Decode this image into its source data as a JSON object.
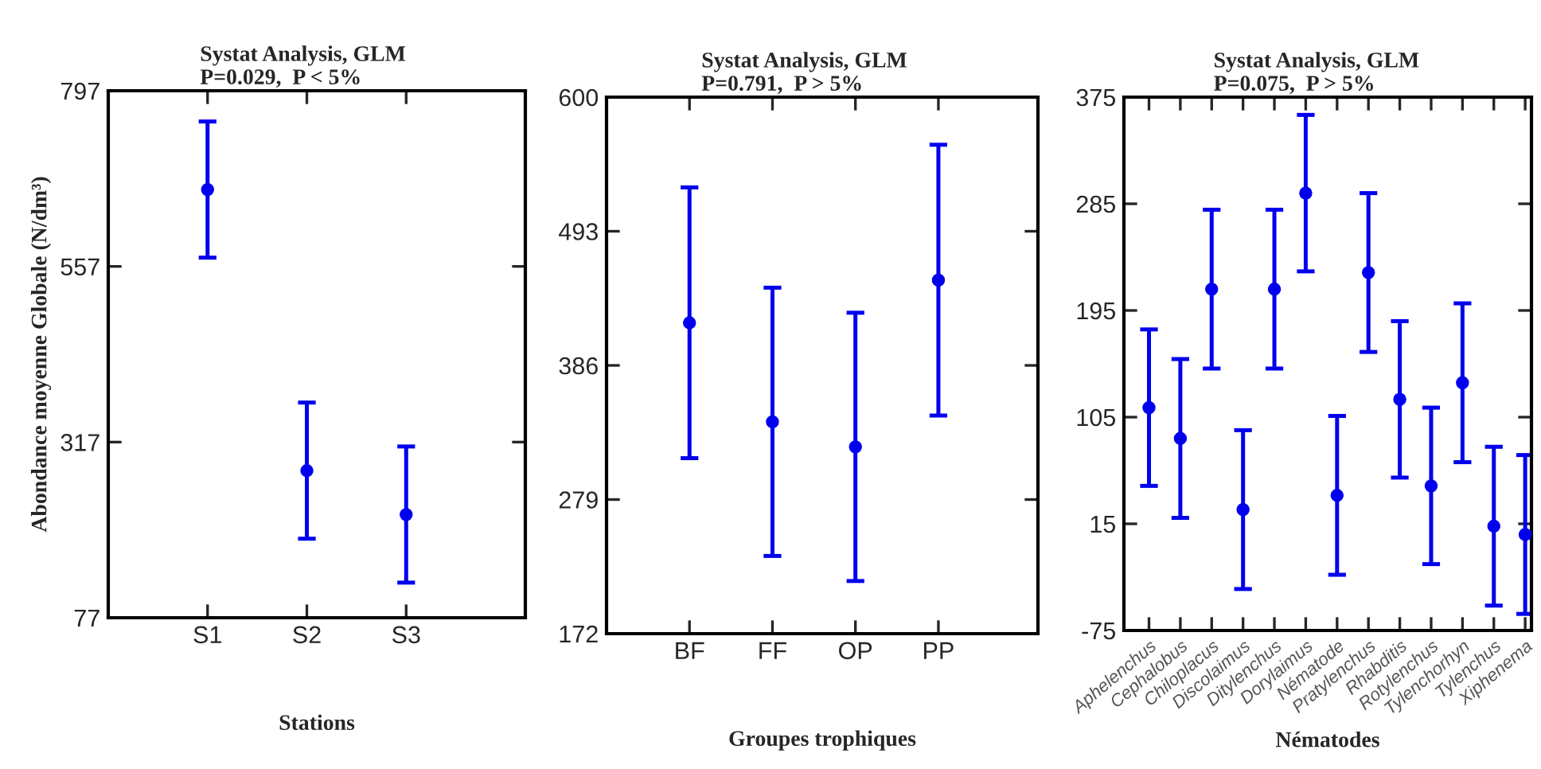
{
  "chart_data": [
    {
      "type": "scatter",
      "title": "Systat Analysis, GLM\nP=0.029,  P < 5%",
      "xlabel": "Stations",
      "ylabel": "Abondance moyenne Globale (N/dm³)",
      "categories": [
        "S1",
        "S2",
        "S3"
      ],
      "marker": "circle",
      "series": [
        {
          "color": "#0000ee",
          "values": [
            662,
            278,
            218
          ],
          "errors": [
            93,
            93,
            93
          ]
        }
      ],
      "ylim": [
        77,
        797
      ],
      "yticks": [
        77,
        317,
        557,
        797
      ],
      "grid": false,
      "legend": false
    },
    {
      "type": "scatter",
      "title": "Systat Analysis, GLM\nP=0.791,  P > 5%",
      "xlabel": "Groupes trophiques",
      "categories": [
        "BF",
        "FF",
        "OP",
        "PP"
      ],
      "marker": "circle",
      "series": [
        {
          "color": "#0000ee",
          "values": [
            420,
            341,
            321,
            454
          ],
          "errors": [
            108,
            107,
            107,
            108
          ]
        }
      ],
      "ylim": [
        172,
        600
      ],
      "yticks": [
        172,
        279,
        386,
        493,
        600
      ],
      "grid": false,
      "legend": false
    },
    {
      "type": "scatter",
      "title": "Systat Analysis, GLM\nP=0.075,  P > 5%",
      "xlabel": "Nématodes",
      "categories": [
        "Aphelenchus",
        "Cephalobus",
        "Chiloplacus",
        "Discolaimus",
        "Ditylenchus",
        "Dorylaimus",
        "Nématode",
        "Pratylenchus",
        "Rhabditis",
        "Rotylenchus",
        "Tylenchorhyn",
        "Tylenchus",
        "Xiphenema"
      ],
      "marker": "circle",
      "series": [
        {
          "color": "#0000ee",
          "values": [
            113,
            87,
            213,
            27,
            213,
            294,
            39,
            227,
            120,
            47,
            134,
            13,
            6
          ],
          "errors": [
            66,
            67,
            67,
            67,
            67,
            66,
            67,
            67,
            66,
            66,
            67,
            67,
            67
          ]
        }
      ],
      "ylim": [
        -75,
        375
      ],
      "yticks": [
        -75,
        15,
        105,
        195,
        285,
        375
      ],
      "grid": false,
      "legend": false
    }
  ]
}
